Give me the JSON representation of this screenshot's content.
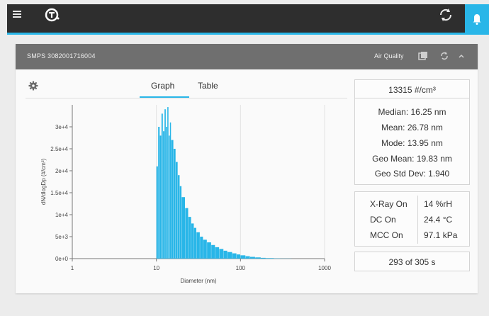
{
  "topbar": {
    "menu_icon": "hamburger-menu-icon",
    "logo_icon": "tsi-logo",
    "sync_icon": "sync-icon",
    "bell_icon": "bell-icon",
    "accent_color": "#29b6e8"
  },
  "panel": {
    "title": "SMPS 3082001716004",
    "air_quality_label": "Air Quality",
    "header_color": "#6f6f6f"
  },
  "tabs": {
    "graph_label": "Graph",
    "table_label": "Table",
    "active": "Graph"
  },
  "summary": {
    "total": "13315 #/cm³",
    "median": "Median:  16.25 nm",
    "mean": "Mean:  26.78 nm",
    "mode": "Mode:  13.95 nm",
    "geo_mean": "Geo Mean:  19.83 nm",
    "geo_std": "Geo Std Dev:  1.940"
  },
  "status": {
    "xray_label": "X-Ray On",
    "xray_value": "14 %rH",
    "dc_label": "DC On",
    "dc_value": "24.4 °C",
    "mcc_label": "MCC On",
    "mcc_value": "97.1 kPa"
  },
  "progress": "293 of 305 s",
  "chart_data": {
    "type": "bar",
    "xscale": "log",
    "xlabel": "Diameter (nm)",
    "ylabel": "dN/dlogDp (#/cm³)",
    "xlim": [
      1,
      1000
    ],
    "ylim": [
      0,
      35000
    ],
    "xticks": [
      "1",
      "10",
      "100",
      "1000"
    ],
    "yticks": [
      "0e+0",
      "5e+3",
      "1e+4",
      "1.5e+4",
      "2e+4",
      "2.5e+4",
      "3e+4"
    ],
    "color": "#29b6e8",
    "x": [
      10,
      10.5,
      11,
      11.5,
      12,
      12.5,
      13,
      13.5,
      14,
      14.5,
      15,
      16,
      17,
      18,
      19,
      20,
      22,
      24,
      26,
      28,
      30,
      33,
      36,
      40,
      45,
      50,
      56,
      63,
      70,
      80,
      90,
      100,
      115,
      130,
      150,
      175,
      200,
      250,
      300,
      400
    ],
    "y": [
      21000,
      30000,
      28000,
      33000,
      29000,
      34000,
      30000,
      34500,
      28000,
      31000,
      27000,
      25000,
      22000,
      19000,
      16500,
      14000,
      11500,
      9500,
      8000,
      7000,
      6000,
      5000,
      4300,
      3700,
      3100,
      2600,
      2200,
      1800,
      1500,
      1200,
      950,
      750,
      550,
      400,
      280,
      180,
      120,
      60,
      30,
      8
    ]
  }
}
